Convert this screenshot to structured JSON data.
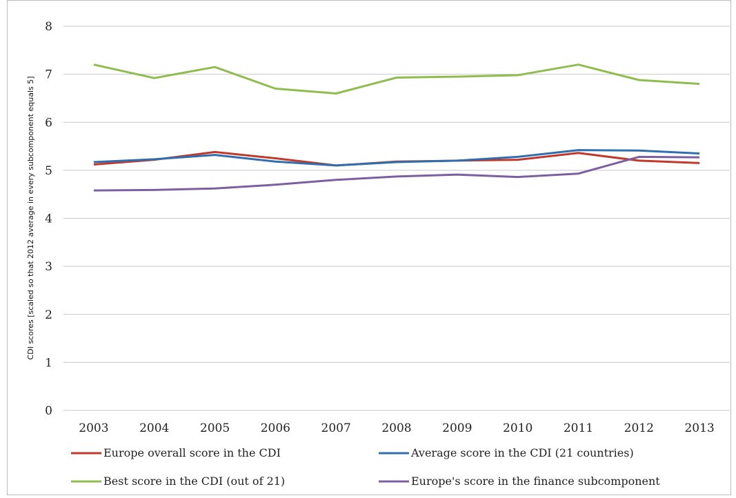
{
  "chart_data": {
    "type": "line",
    "title": "",
    "xlabel": "",
    "ylabel": "CDI scores [scaled so that 2012 average in every subcomponent equals 5]",
    "ylim": [
      0,
      8
    ],
    "yticks": [
      "0",
      "1",
      "2",
      "3",
      "4",
      "5",
      "6",
      "7",
      "8"
    ],
    "grid": true,
    "legend_position": "bottom",
    "categories": [
      "2003",
      "2004",
      "2005",
      "2006",
      "2007",
      "2008",
      "2009",
      "2010",
      "2011",
      "2012",
      "2013"
    ],
    "series": [
      {
        "name": "Europe overall score in the CDI",
        "color": "#c0392b",
        "values": [
          5.12,
          5.22,
          5.38,
          5.25,
          5.1,
          5.18,
          5.2,
          5.22,
          5.36,
          5.2,
          5.15
        ]
      },
      {
        "name": "Average score in the CDI (21 countries)",
        "color": "#2f6fad",
        "values": [
          5.17,
          5.23,
          5.32,
          5.18,
          5.1,
          5.17,
          5.2,
          5.28,
          5.42,
          5.41,
          5.35
        ]
      },
      {
        "name": "Best score in the CDI (out of 21)",
        "color": "#8fbd4d",
        "values": [
          7.2,
          6.92,
          7.15,
          6.7,
          6.6,
          6.93,
          6.95,
          6.98,
          7.2,
          6.88,
          6.8
        ]
      },
      {
        "name": "Europe's score in the finance subcomponent",
        "color": "#7b5fa0",
        "values": [
          4.58,
          4.59,
          4.62,
          4.7,
          4.8,
          4.87,
          4.91,
          4.86,
          4.93,
          5.28,
          5.27
        ]
      }
    ]
  }
}
